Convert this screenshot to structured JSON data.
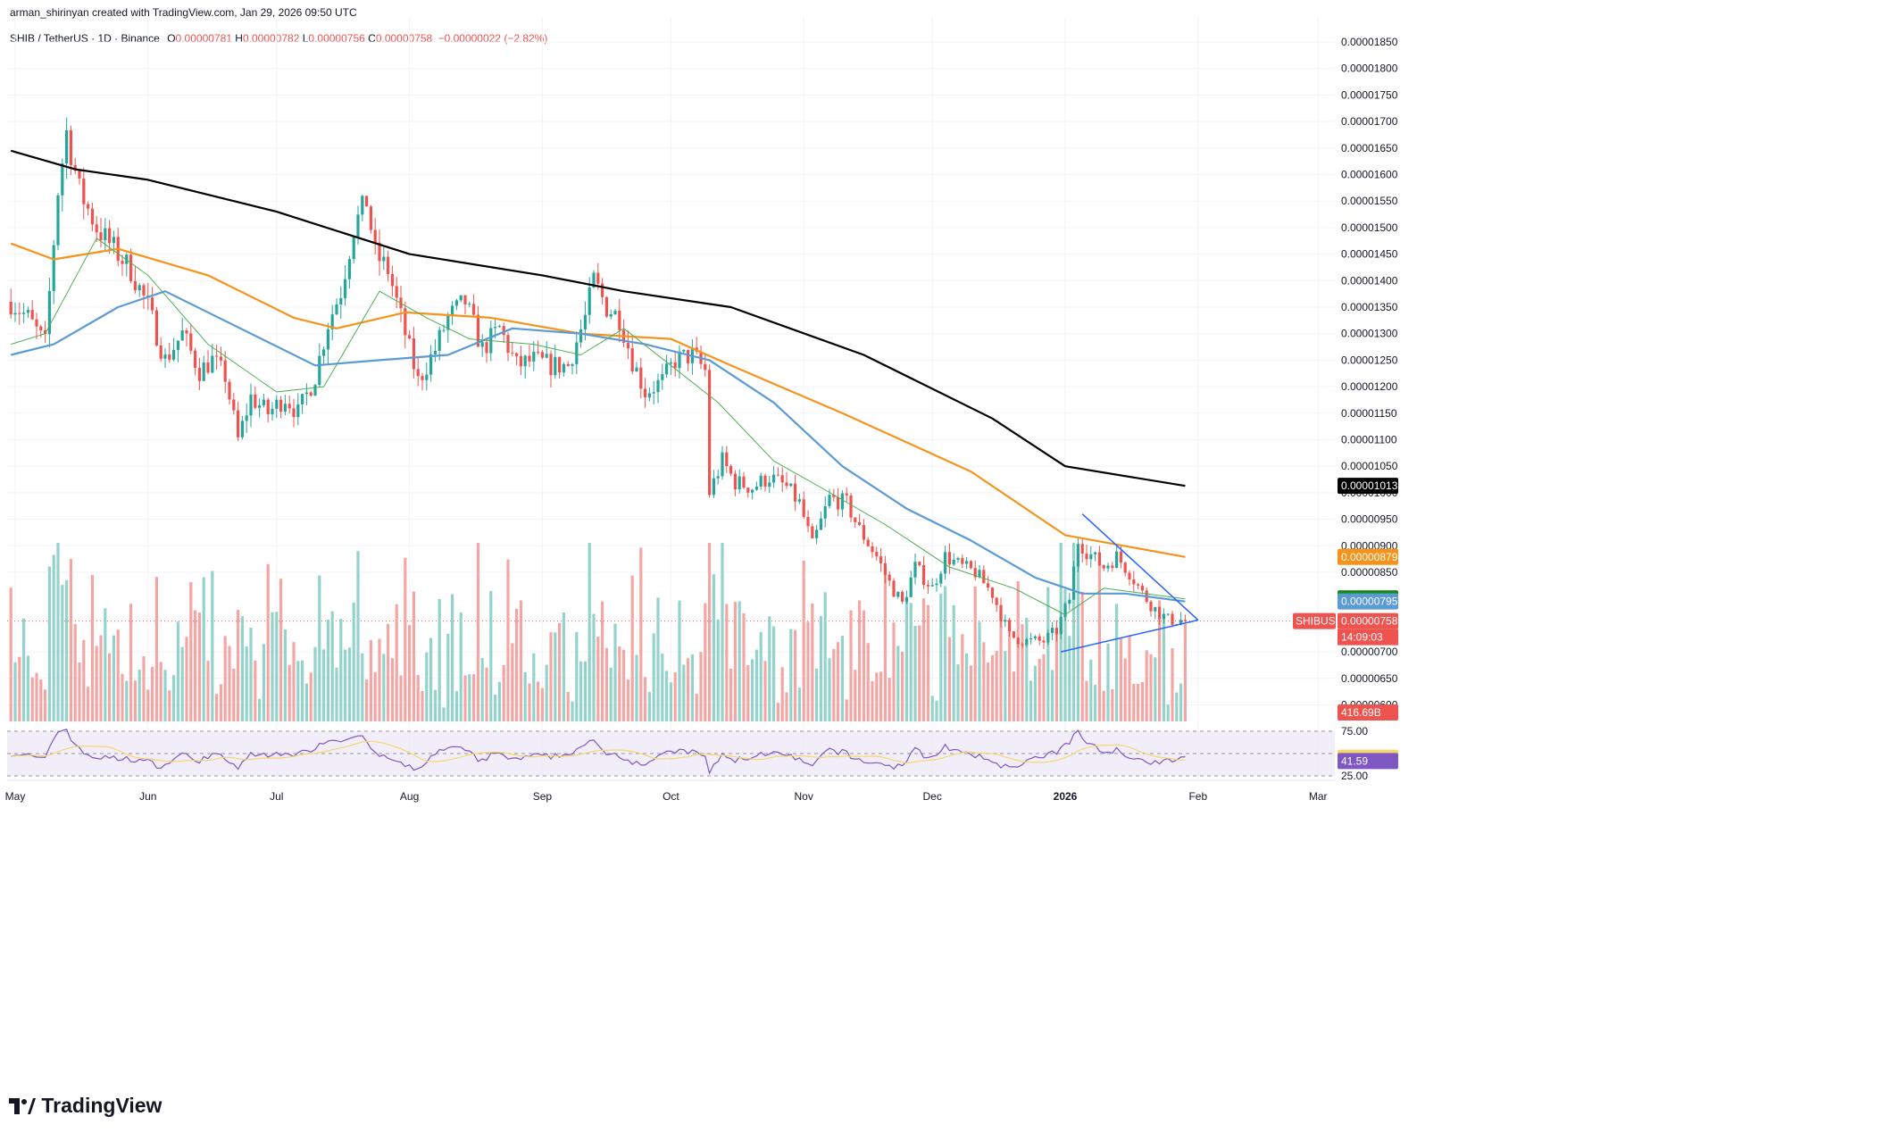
{
  "header": {
    "attribution": "arman_shirinyan created with TradingView.com, Jan 29, 2026 09:50 UTC",
    "symbol": "SHIB / TetherUS · 1D · Binance",
    "open_label": "O",
    "open": "0.00000781",
    "high_label": "H",
    "high": "0.00000782",
    "low_label": "L",
    "low": "0.00000756",
    "close_label": "C",
    "close": "0.00000758",
    "change": "−0.00000022 (−2.82%)"
  },
  "brand": {
    "name": "TradingView",
    "icon": "tradingview-logo-icon"
  },
  "colors": {
    "up": "#26a69a",
    "down": "#ef5350",
    "vol_up": "#93d3cc",
    "vol_down": "#f4a6a4",
    "ma_black": "#000000",
    "ma_orange": "#f7931a",
    "ma_blue": "#5b9bd5",
    "ma_green": "#4caf50",
    "rsi": "#7e57c2",
    "rsi_ma": "#f5d76e",
    "triangle": "#2962ff"
  },
  "chart_data": {
    "type": "candlestick",
    "symbol": "SHIBUSDT",
    "price_axis": {
      "min": 6e-06,
      "max": 1.85e-05,
      "ticks": [
        "0.00001850",
        "0.00001800",
        "0.00001750",
        "0.00001700",
        "0.00001650",
        "0.00001600",
        "0.00001550",
        "0.00001500",
        "0.00001450",
        "0.00001400",
        "0.00001350",
        "0.00001300",
        "0.00001250",
        "0.00001200",
        "0.00001150",
        "0.00001100",
        "0.00001050",
        "0.00001000",
        "0.00000950",
        "0.00000900",
        "0.00000850",
        "0.00000700",
        "0.00000650",
        "0.00000600"
      ]
    },
    "time_axis": {
      "labels": [
        "May",
        "Jun",
        "Jul",
        "Aug",
        "Sep",
        "Oct",
        "Nov",
        "Dec",
        "2026",
        "Feb",
        "Mar"
      ],
      "label_dates": [
        "2025-05-01",
        "2025-06-01",
        "2025-07-01",
        "2025-08-01",
        "2025-09-01",
        "2025-10-01",
        "2025-11-01",
        "2025-12-01",
        "2026-01-01",
        "2026-02-01",
        "2026-03-01"
      ],
      "first_date": "2025-04-30",
      "last_candle_date": "2026-01-29"
    },
    "candle_keyframes": [
      [
        "2025-04-30",
        1.36e-05
      ],
      [
        "2025-05-04",
        1.33e-05
      ],
      [
        "2025-05-08",
        1.28e-05
      ],
      [
        "2025-05-11",
        1.57e-05
      ],
      [
        "2025-05-13",
        1.68e-05
      ],
      [
        "2025-05-16",
        1.57e-05
      ],
      [
        "2025-05-20",
        1.5e-05
      ],
      [
        "2025-05-24",
        1.46e-05
      ],
      [
        "2025-05-28",
        1.42e-05
      ],
      [
        "2025-06-01",
        1.35e-05
      ],
      [
        "2025-06-05",
        1.25e-05
      ],
      [
        "2025-06-09",
        1.3e-05
      ],
      [
        "2025-06-13",
        1.23e-05
      ],
      [
        "2025-06-16",
        1.25e-05
      ],
      [
        "2025-06-19",
        1.22e-05
      ],
      [
        "2025-06-22",
        1.1e-05
      ],
      [
        "2025-06-25",
        1.18e-05
      ],
      [
        "2025-06-29",
        1.15e-05
      ],
      [
        "2025-07-03",
        1.18e-05
      ],
      [
        "2025-07-06",
        1.15e-05
      ],
      [
        "2025-07-10",
        1.22e-05
      ],
      [
        "2025-07-13",
        1.32e-05
      ],
      [
        "2025-07-16",
        1.38e-05
      ],
      [
        "2025-07-19",
        1.5e-05
      ],
      [
        "2025-07-22",
        1.55e-05
      ],
      [
        "2025-07-24",
        1.45e-05
      ],
      [
        "2025-07-27",
        1.42e-05
      ],
      [
        "2025-07-31",
        1.3e-05
      ],
      [
        "2025-08-03",
        1.21e-05
      ],
      [
        "2025-08-07",
        1.27e-05
      ],
      [
        "2025-08-10",
        1.33e-05
      ],
      [
        "2025-08-14",
        1.36e-05
      ],
      [
        "2025-08-18",
        1.27e-05
      ],
      [
        "2025-08-22",
        1.31e-05
      ],
      [
        "2025-08-26",
        1.24e-05
      ],
      [
        "2025-08-30",
        1.25e-05
      ],
      [
        "2025-09-03",
        1.24e-05
      ],
      [
        "2025-09-07",
        1.24e-05
      ],
      [
        "2025-09-11",
        1.33e-05
      ],
      [
        "2025-09-13",
        1.4e-05
      ],
      [
        "2025-09-16",
        1.35e-05
      ],
      [
        "2025-09-19",
        1.33e-05
      ],
      [
        "2025-09-22",
        1.25e-05
      ],
      [
        "2025-09-25",
        1.19e-05
      ],
      [
        "2025-09-29",
        1.21e-05
      ],
      [
        "2025-10-02",
        1.25e-05
      ],
      [
        "2025-10-06",
        1.26e-05
      ],
      [
        "2025-10-09",
        1.23e-05
      ],
      [
        "2025-10-10",
        1e-05
      ],
      [
        "2025-10-13",
        1.06e-05
      ],
      [
        "2025-10-16",
        1.02e-05
      ],
      [
        "2025-10-20",
        1.01e-05
      ],
      [
        "2025-10-24",
        1.03e-05
      ],
      [
        "2025-10-28",
        1.01e-05
      ],
      [
        "2025-10-31",
        9.8e-06
      ],
      [
        "2025-11-03",
        9e-06
      ],
      [
        "2025-11-07",
        9.9e-06
      ],
      [
        "2025-11-11",
        9.8e-06
      ],
      [
        "2025-11-14",
        9.3e-06
      ],
      [
        "2025-11-18",
        8.8e-06
      ],
      [
        "2025-11-21",
        8.3e-06
      ],
      [
        "2025-11-24",
        7.9e-06
      ],
      [
        "2025-11-27",
        8.6e-06
      ],
      [
        "2025-12-01",
        8.2e-06
      ],
      [
        "2025-12-04",
        8.8e-06
      ],
      [
        "2025-12-08",
        8.6e-06
      ],
      [
        "2025-12-11",
        8.5e-06
      ],
      [
        "2025-12-15",
        8.1e-06
      ],
      [
        "2025-12-19",
        7.3e-06
      ],
      [
        "2025-12-23",
        7.2e-06
      ],
      [
        "2025-12-27",
        7.2e-06
      ],
      [
        "2025-12-30",
        7.4e-06
      ],
      [
        "2026-01-02",
        8e-06
      ],
      [
        "2026-01-04",
        9.1e-06
      ],
      [
        "2026-01-06",
        8.9e-06
      ],
      [
        "2026-01-10",
        8.6e-06
      ],
      [
        "2026-01-13",
        8.8e-06
      ],
      [
        "2026-01-16",
        8.5e-06
      ],
      [
        "2026-01-19",
        8.1e-06
      ],
      [
        "2026-01-22",
        7.8e-06
      ],
      [
        "2026-01-25",
        7.6e-06
      ],
      [
        "2026-01-29",
        7.6e-06
      ]
    ],
    "moving_averages": [
      {
        "color": "#000000",
        "points": [
          [
            "2025-04-30",
            1.645e-05
          ],
          [
            "2025-05-15",
            1.61e-05
          ],
          [
            "2025-06-01",
            1.59e-05
          ],
          [
            "2025-07-01",
            1.53e-05
          ],
          [
            "2025-08-01",
            1.45e-05
          ],
          [
            "2025-09-01",
            1.41e-05
          ],
          [
            "2025-09-20",
            1.38e-05
          ],
          [
            "2025-10-15",
            1.35e-05
          ],
          [
            "2025-11-15",
            1.26e-05
          ],
          [
            "2025-12-15",
            1.14e-05
          ],
          [
            "2026-01-01",
            1.05e-05
          ],
          [
            "2026-01-29",
            1.013e-05
          ]
        ]
      },
      {
        "color": "#f7931a",
        "points": [
          [
            "2025-04-30",
            1.47e-05
          ],
          [
            "2025-05-10",
            1.44e-05
          ],
          [
            "2025-05-25",
            1.46e-05
          ],
          [
            "2025-06-15",
            1.41e-05
          ],
          [
            "2025-07-05",
            1.33e-05
          ],
          [
            "2025-07-15",
            1.31e-05
          ],
          [
            "2025-07-31",
            1.34e-05
          ],
          [
            "2025-08-20",
            1.33e-05
          ],
          [
            "2025-09-10",
            1.3e-05
          ],
          [
            "2025-10-01",
            1.29e-05
          ],
          [
            "2025-10-15",
            1.24e-05
          ],
          [
            "2025-11-10",
            1.15e-05
          ],
          [
            "2025-12-10",
            1.04e-05
          ],
          [
            "2026-01-01",
            9.2e-06
          ],
          [
            "2026-01-29",
            8.79e-06
          ]
        ]
      },
      {
        "color": "#5b9bd5",
        "points": [
          [
            "2025-04-30",
            1.26e-05
          ],
          [
            "2025-05-10",
            1.28e-05
          ],
          [
            "2025-05-25",
            1.35e-05
          ],
          [
            "2025-06-05",
            1.38e-05
          ],
          [
            "2025-06-20",
            1.32e-05
          ],
          [
            "2025-07-10",
            1.24e-05
          ],
          [
            "2025-07-25",
            1.25e-05
          ],
          [
            "2025-08-10",
            1.26e-05
          ],
          [
            "2025-08-25",
            1.31e-05
          ],
          [
            "2025-09-10",
            1.3e-05
          ],
          [
            "2025-09-25",
            1.28e-05
          ],
          [
            "2025-10-10",
            1.25e-05
          ],
          [
            "2025-10-25",
            1.17e-05
          ],
          [
            "2025-11-10",
            1.05e-05
          ],
          [
            "2025-11-25",
            9.7e-06
          ],
          [
            "2025-12-10",
            9.1e-06
          ],
          [
            "2025-12-25",
            8.4e-06
          ],
          [
            "2026-01-05",
            8.1e-06
          ],
          [
            "2026-01-15",
            8.1e-06
          ],
          [
            "2026-01-29",
            7.95e-06
          ]
        ]
      },
      {
        "color": "#4caf50",
        "points": [
          [
            "2025-04-30",
            1.28e-05
          ],
          [
            "2025-05-08",
            1.3e-05
          ],
          [
            "2025-05-20",
            1.48e-05
          ],
          [
            "2025-06-01",
            1.41e-05
          ],
          [
            "2025-06-15",
            1.28e-05
          ],
          [
            "2025-07-01",
            1.19e-05
          ],
          [
            "2025-07-12",
            1.2e-05
          ],
          [
            "2025-07-25",
            1.38e-05
          ],
          [
            "2025-08-05",
            1.33e-05
          ],
          [
            "2025-08-15",
            1.29e-05
          ],
          [
            "2025-08-30",
            1.28e-05
          ],
          [
            "2025-09-10",
            1.26e-05
          ],
          [
            "2025-09-20",
            1.31e-05
          ],
          [
            "2025-10-01",
            1.24e-05
          ],
          [
            "2025-10-12",
            1.17e-05
          ],
          [
            "2025-10-25",
            1.06e-05
          ],
          [
            "2025-11-05",
            1.01e-05
          ],
          [
            "2025-11-20",
            9.4e-06
          ],
          [
            "2025-12-05",
            8.6e-06
          ],
          [
            "2025-12-20",
            8.2e-06
          ],
          [
            "2026-01-01",
            7.7e-06
          ],
          [
            "2026-01-10",
            8.2e-06
          ],
          [
            "2026-01-29",
            8e-06
          ]
        ]
      }
    ],
    "triangle": {
      "upper": [
        [
          "2026-01-05",
          9.6e-06
        ],
        [
          "2026-02-01",
          7.6e-06
        ]
      ],
      "lower": [
        [
          "2025-12-31",
          7e-06
        ],
        [
          "2026-02-01",
          7.6e-06
        ]
      ]
    },
    "price_badges": [
      {
        "value": "0.00001013",
        "color": "#000000"
      },
      {
        "value": "0.00000879",
        "color": "#f7931a"
      },
      {
        "value": "0.00000801",
        "color": "#1b8a1b"
      },
      {
        "value": "0.00000795",
        "color": "#5b9bd5"
      }
    ],
    "last_price": {
      "symbol": "SHIBUSDT",
      "value": "0.00000758",
      "countdown": "14:09:03",
      "color": "#ef5350"
    },
    "volume": {
      "last_label": "416.69B"
    },
    "rsi": {
      "upper": "75.00",
      "lower": "25.00",
      "value": "41.59",
      "ma_value": "45.35",
      "min": 20,
      "max": 80
    }
  }
}
